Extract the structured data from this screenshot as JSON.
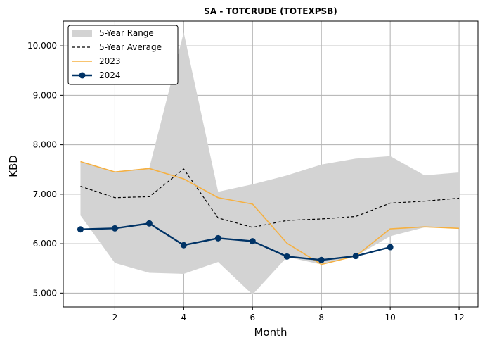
{
  "chart_data": {
    "type": "line",
    "title": "SA - TOTCRUDE (TOTEXPSB)",
    "xlabel": "Month",
    "ylabel": "KBD",
    "xlim": [
      0.5,
      12.55
    ],
    "ylim": [
      4.72,
      10.5
    ],
    "x_ticks": [
      2,
      4,
      6,
      8,
      10,
      12
    ],
    "x_tick_labels": [
      "2",
      "4",
      "6",
      "8",
      "10",
      "12"
    ],
    "y_ticks": [
      5,
      6,
      7,
      8,
      9,
      10
    ],
    "y_tick_labels": [
      "5.000",
      "6.000",
      "7.000",
      "8.000",
      "9.000",
      "10.000"
    ],
    "grid": true,
    "legend_position": "top-left",
    "legend": [
      "5-Year Range",
      "5-Year Average",
      "2023",
      "2024"
    ],
    "colors": {
      "range": "#d3d3d3",
      "average": "#000000",
      "y2023": "#f5b041",
      "y2024": "#003366",
      "grid": "#b0b0b0"
    },
    "range": {
      "x": [
        1,
        2,
        3,
        4,
        5,
        6,
        7,
        8,
        9,
        10,
        11,
        12
      ],
      "lower": [
        6.57,
        5.61,
        5.41,
        5.39,
        5.63,
        4.97,
        5.73,
        5.58,
        5.75,
        6.15,
        6.33,
        6.31
      ],
      "upper": [
        7.65,
        7.46,
        7.53,
        10.27,
        7.05,
        7.2,
        7.38,
        7.6,
        7.72,
        7.77,
        7.38,
        7.44
      ]
    },
    "series": [
      {
        "name": "5-Year Average",
        "x": [
          1,
          2,
          3,
          4,
          5,
          6,
          7,
          8,
          9,
          10,
          11,
          12
        ],
        "values": [
          7.16,
          6.93,
          6.95,
          7.51,
          6.52,
          6.33,
          6.47,
          6.5,
          6.55,
          6.82,
          6.86,
          6.92
        ]
      },
      {
        "name": "2023",
        "x": [
          1,
          2,
          3,
          4,
          5,
          6,
          7,
          8,
          9,
          10,
          11,
          12
        ],
        "values": [
          7.66,
          7.45,
          7.52,
          7.31,
          6.93,
          6.8,
          6.01,
          5.58,
          5.75,
          6.3,
          6.34,
          6.31
        ]
      },
      {
        "name": "2024",
        "x": [
          1,
          2,
          3,
          4,
          5,
          6,
          7,
          8,
          9,
          10
        ],
        "values": [
          6.29,
          6.31,
          6.41,
          5.97,
          6.11,
          6.05,
          5.74,
          5.67,
          5.75,
          5.93
        ]
      }
    ]
  }
}
